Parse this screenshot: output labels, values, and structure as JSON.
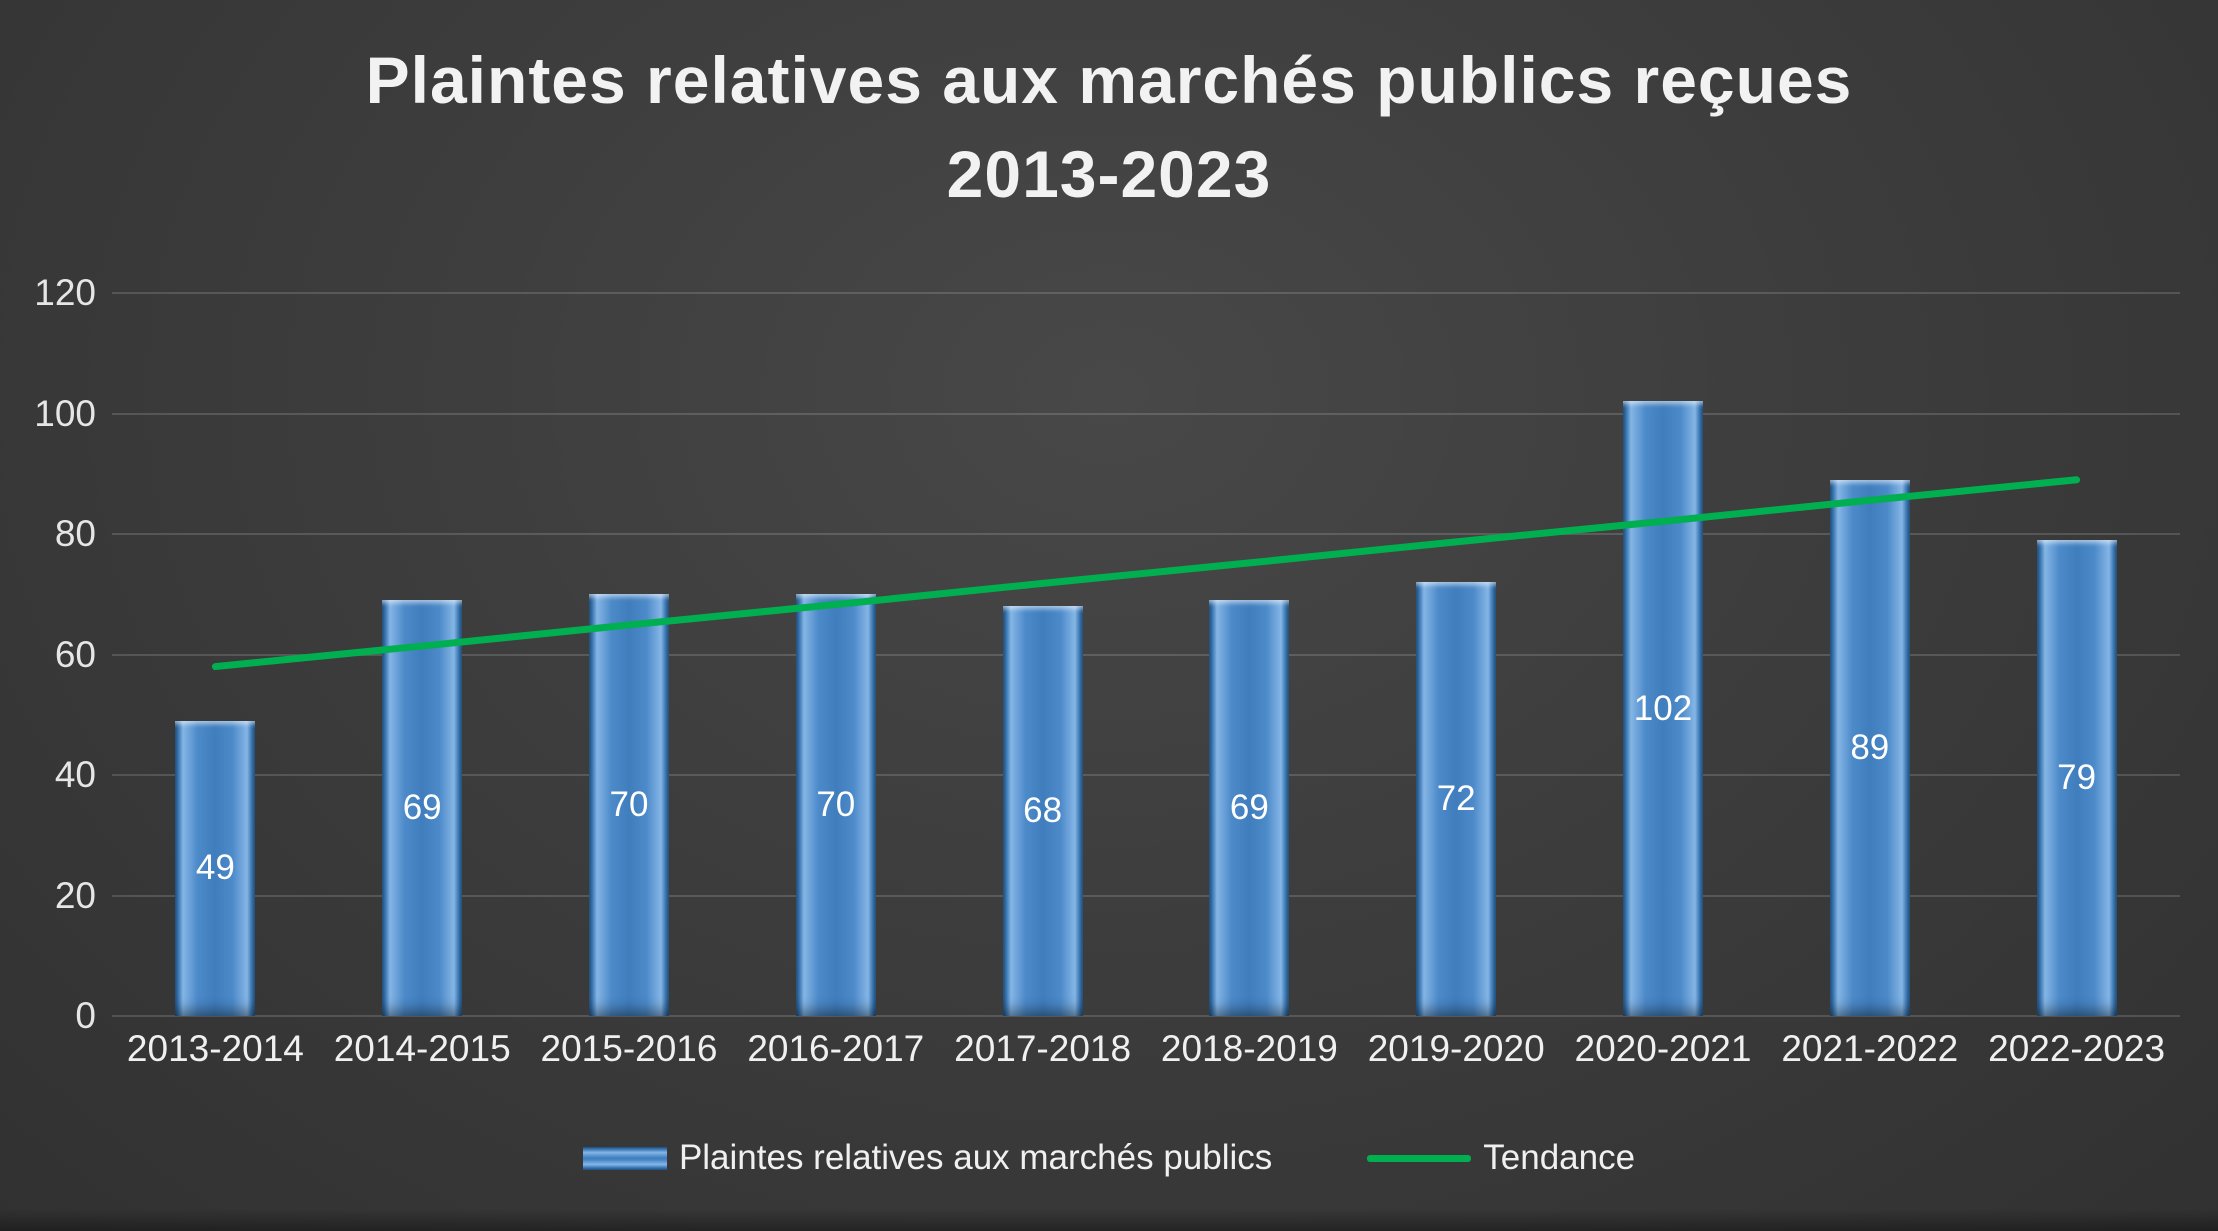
{
  "title": {
    "line1": "Plaintes relatives aux marchés publics reçues",
    "line2": "2013-2023"
  },
  "chart_data": {
    "type": "bar",
    "title": "Plaintes relatives aux marchés publics reçues 2013-2023",
    "categories": [
      "2013-2014",
      "2014-2015",
      "2015-2016",
      "2016-2017",
      "2017-2018",
      "2018-2019",
      "2019-2020",
      "2020-2021",
      "2021-2022",
      "2022-2023"
    ],
    "series": [
      {
        "name": "Plaintes relatives aux marchés publics",
        "type": "bar",
        "color": "#4a86c8",
        "values": [
          49,
          69,
          70,
          70,
          68,
          69,
          72,
          102,
          89,
          79
        ]
      },
      {
        "name": "Tendance",
        "type": "line",
        "color": "#00b050",
        "values": [
          58,
          61.4,
          64.9,
          68.3,
          71.8,
          75.2,
          78.7,
          82.1,
          85.6,
          89
        ]
      }
    ],
    "ylim": [
      0,
      120
    ],
    "yticks": [
      0,
      20,
      40,
      60,
      80,
      100,
      120
    ],
    "grid": true,
    "legend_position": "bottom",
    "data_labels": true,
    "background_color": "#3d3d3d",
    "text_color": "#f2f2f2"
  },
  "legend": {
    "items": [
      {
        "label": "Plaintes relatives aux marchés publics",
        "swatch": "bar"
      },
      {
        "label": "Tendance",
        "swatch": "line"
      }
    ]
  }
}
